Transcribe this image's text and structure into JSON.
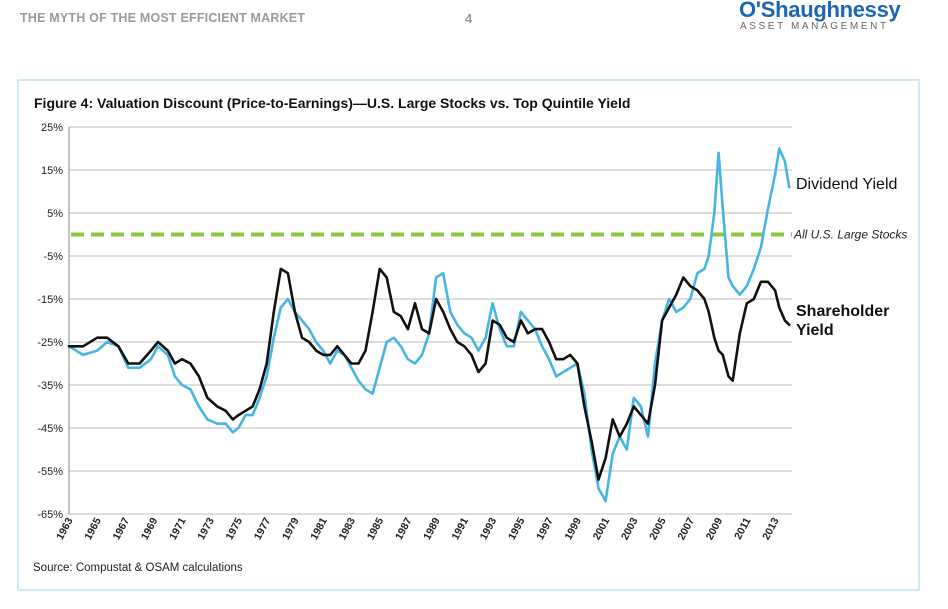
{
  "header": {
    "doc_title": "THE MYTH OF THE MOST EFFICIENT MARKET",
    "page_number": "4",
    "logo": {
      "name": "O'Shaughnessy",
      "subtitle": "ASSET MANAGEMENT",
      "color": "#1c67b1"
    }
  },
  "figure": {
    "title": "Figure 4: Valuation Discount (Price-to-Earnings)—U.S. Large Stocks vs. Top Quintile Yield",
    "source": "Source: Compustat & OSAM calculations"
  },
  "chart_data": {
    "type": "line",
    "title": "Figure 4: Valuation Discount (Price-to-Earnings)—U.S. Large Stocks vs. Top Quintile Yield",
    "xlabel": "",
    "ylabel": "",
    "xlim": [
      1963,
      2014.2
    ],
    "ylim": [
      -65,
      25
    ],
    "yticks": [
      "25%",
      "15%",
      "5%",
      "-5%",
      "-15%",
      "-25%",
      "-35%",
      "-45%",
      "-55%",
      "-65%"
    ],
    "xticks": [
      "1963",
      "1965",
      "1967",
      "1969",
      "1971",
      "1973",
      "1975",
      "1977",
      "1979",
      "1981",
      "1983",
      "1985",
      "1987",
      "1989",
      "1991",
      "1993",
      "1995",
      "1997",
      "1999",
      "2001",
      "2003",
      "2005",
      "2007",
      "2009",
      "2011",
      "2013"
    ],
    "grid": "horizontal",
    "reference_line": {
      "name": "All U.S. Large Stocks",
      "value": 0,
      "color": "#8dc63f",
      "style": "dashed"
    },
    "series": [
      {
        "name": "Dividend Yield",
        "color": "#45b5e3",
        "x": [
          1963.0,
          1964.0,
          1965.0,
          1965.7,
          1966.5,
          1967.2,
          1968.0,
          1968.8,
          1969.3,
          1970.0,
          1970.5,
          1971.0,
          1971.6,
          1972.2,
          1972.8,
          1973.5,
          1974.1,
          1974.6,
          1975.0,
          1975.5,
          1976.0,
          1976.5,
          1977.0,
          1977.5,
          1978.0,
          1978.5,
          1979.0,
          1979.5,
          1980.0,
          1980.5,
          1981.0,
          1981.5,
          1982.0,
          1982.5,
          1983.0,
          1983.5,
          1984.0,
          1984.5,
          1985.0,
          1985.5,
          1986.0,
          1986.5,
          1987.0,
          1987.5,
          1988.0,
          1988.5,
          1989.0,
          1989.5,
          1990.0,
          1990.5,
          1991.0,
          1991.5,
          1992.0,
          1992.5,
          1993.0,
          1993.5,
          1994.0,
          1994.5,
          1995.0,
          1995.5,
          1996.0,
          1996.5,
          1997.0,
          1997.5,
          1998.0,
          1998.5,
          1999.0,
          1999.5,
          2000.0,
          2000.5,
          2001.0,
          2001.5,
          2002.0,
          2002.5,
          2003.0,
          2003.5,
          2004.0,
          2004.5,
          2005.0,
          2005.5,
          2006.0,
          2006.5,
          2007.0,
          2007.5,
          2008.0,
          2008.3,
          2008.7,
          2009.0,
          2009.3,
          2009.7,
          2010.0,
          2010.5,
          2011.0,
          2011.5,
          2012.0,
          2012.5,
          2013.0,
          2013.3,
          2013.7,
          2014.0
        ],
        "values": [
          -26,
          -28,
          -27,
          -25,
          -26,
          -31,
          -31,
          -29,
          -26,
          -28,
          -33,
          -35,
          -36,
          -40,
          -43,
          -44,
          -44,
          -46,
          -45,
          -42,
          -42,
          -38,
          -33,
          -24,
          -17,
          -15,
          -18,
          -20,
          -22,
          -25,
          -27,
          -30,
          -27,
          -28,
          -31,
          -34,
          -36,
          -37,
          -31,
          -25,
          -24,
          -26,
          -29,
          -30,
          -28,
          -23,
          -10,
          -9,
          -18,
          -21,
          -23,
          -24,
          -27,
          -24,
          -16,
          -22,
          -26,
          -26,
          -18,
          -20,
          -22,
          -26,
          -29,
          -33,
          -32,
          -31,
          -30,
          -37,
          -50,
          -59,
          -62,
          -51,
          -47,
          -50,
          -38,
          -40,
          -47,
          -30,
          -20,
          -15,
          -18,
          -17,
          -15,
          -9,
          -8,
          -5,
          5,
          19,
          6,
          -10,
          -12,
          -14,
          -12,
          -8,
          -3,
          6,
          14,
          20,
          17,
          11
        ]
      },
      {
        "name": "Shareholder Yield",
        "color": "#111111",
        "x": [
          1963.0,
          1964.0,
          1965.0,
          1965.7,
          1966.5,
          1967.2,
          1968.0,
          1968.8,
          1969.3,
          1970.0,
          1970.5,
          1971.0,
          1971.6,
          1972.2,
          1972.8,
          1973.5,
          1974.1,
          1974.6,
          1975.0,
          1975.5,
          1976.0,
          1976.5,
          1977.0,
          1977.5,
          1978.0,
          1978.5,
          1979.0,
          1979.5,
          1980.0,
          1980.5,
          1981.0,
          1981.5,
          1982.0,
          1982.5,
          1983.0,
          1983.5,
          1984.0,
          1984.5,
          1985.0,
          1985.5,
          1986.0,
          1986.5,
          1987.0,
          1987.5,
          1988.0,
          1988.5,
          1989.0,
          1989.5,
          1990.0,
          1990.5,
          1991.0,
          1991.5,
          1992.0,
          1992.5,
          1993.0,
          1993.5,
          1994.0,
          1994.5,
          1995.0,
          1995.5,
          1996.0,
          1996.5,
          1997.0,
          1997.5,
          1998.0,
          1998.5,
          1999.0,
          1999.5,
          2000.0,
          2000.5,
          2001.0,
          2001.5,
          2002.0,
          2002.5,
          2003.0,
          2003.5,
          2004.0,
          2004.5,
          2005.0,
          2005.5,
          2006.0,
          2006.5,
          2007.0,
          2007.5,
          2008.0,
          2008.3,
          2008.7,
          2009.0,
          2009.3,
          2009.7,
          2010.0,
          2010.5,
          2011.0,
          2011.5,
          2012.0,
          2012.5,
          2013.0,
          2013.3,
          2013.7,
          2014.0
        ],
        "values": [
          -26,
          -26,
          -24,
          -24,
          -26,
          -30,
          -30,
          -27,
          -25,
          -27,
          -30,
          -29,
          -30,
          -33,
          -38,
          -40,
          -41,
          -43,
          -42,
          -41,
          -40,
          -36,
          -30,
          -18,
          -8,
          -9,
          -18,
          -24,
          -25,
          -27,
          -28,
          -28,
          -26,
          -28,
          -30,
          -30,
          -27,
          -18,
          -8,
          -10,
          -18,
          -19,
          -22,
          -16,
          -22,
          -23,
          -15,
          -18,
          -22,
          -25,
          -26,
          -28,
          -32,
          -30,
          -20,
          -21,
          -24,
          -25,
          -20,
          -23,
          -22,
          -22,
          -25,
          -29,
          -29,
          -28,
          -30,
          -40,
          -48,
          -57,
          -52,
          -43,
          -47,
          -44,
          -40,
          -42,
          -44,
          -35,
          -20,
          -17,
          -14,
          -10,
          -12,
          -13,
          -15,
          -18,
          -24,
          -27,
          -28,
          -33,
          -34,
          -23,
          -16,
          -15,
          -11,
          -11,
          -13,
          -17,
          -20,
          -21
        ]
      }
    ]
  }
}
